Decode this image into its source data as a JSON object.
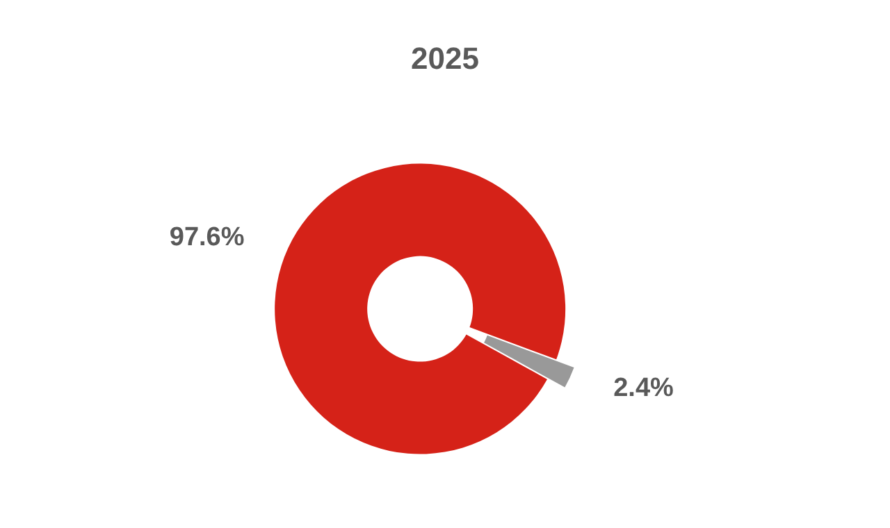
{
  "chart_data": {
    "type": "donut",
    "title": "2025",
    "categories": [
      null,
      null
    ],
    "values": [
      97.6,
      2.4
    ],
    "colors": [
      "#d52218",
      "#999999"
    ],
    "value_labels": [
      "97.6%",
      "2.4%"
    ]
  }
}
